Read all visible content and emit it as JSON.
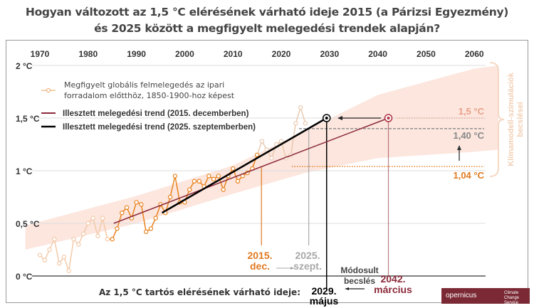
{
  "title_line1": "Hogyan változott az 1,5 °C elérésének várható ideje 2015 (a Párizsi Egyezmény)",
  "title_line2": "és 2025 között a megfigyelt melegedési trendek alapján?",
  "chart_data": {
    "type": "line",
    "title": "Hogyan változott az 1,5 °C elérésének várható ideje 2015 (a Párizsi Egyezmény) és 2025 között a megfigyelt melegedési trendek alapján?",
    "xlim": [
      1968,
      2062
    ],
    "ylim": [
      0,
      2
    ],
    "x_ticks": [
      1970,
      1980,
      1990,
      2000,
      2010,
      2020,
      2030,
      2040,
      2050,
      2060
    ],
    "y_ticks": [
      {
        "v": 0,
        "label": "0 °C"
      },
      {
        "v": 0.5,
        "label": "0,5 °C"
      },
      {
        "v": 1,
        "label": "1 °C"
      },
      {
        "v": 1.5,
        "label": "1,5 °C"
      },
      {
        "v": 2,
        "label": "2 °C"
      }
    ],
    "grid": true,
    "legend": [
      {
        "label_line1": "Megfigyelt globális felmelegedés az ipari",
        "label_line2": "forradalom előtthöz, 1850-1900-hoz képest",
        "color": "#e8a060"
      },
      {
        "label": "Illesztett melegedési trend (2015. decemberben)",
        "color": "#8b2a3a"
      },
      {
        "label": "Illesztett melegedési trend (2025. szeptemberben)",
        "color": "#000000"
      }
    ],
    "observed": {
      "years": [
        1970,
        1971,
        1972,
        1973,
        1974,
        1975,
        1976,
        1977,
        1978,
        1979,
        1980,
        1981,
        1982,
        1983,
        1984,
        1985,
        1986,
        1987,
        1988,
        1989,
        1990,
        1991,
        1992,
        1993,
        1994,
        1995,
        1996,
        1997,
        1998,
        1999,
        2000,
        2001,
        2002,
        2003,
        2004,
        2005,
        2006,
        2007,
        2008,
        2009,
        2010,
        2011,
        2012,
        2013,
        2014,
        2015,
        2016,
        2017,
        2018,
        2019,
        2020,
        2021,
        2022,
        2023,
        2024,
        2025
      ],
      "values": [
        0.2,
        0.15,
        0.25,
        0.35,
        0.12,
        0.18,
        0.05,
        0.35,
        0.3,
        0.4,
        0.5,
        0.55,
        0.38,
        0.55,
        0.35,
        0.35,
        0.45,
        0.6,
        0.65,
        0.55,
        0.7,
        0.68,
        0.42,
        0.45,
        0.55,
        0.68,
        0.6,
        0.75,
        0.95,
        0.7,
        0.7,
        0.82,
        0.9,
        0.9,
        0.85,
        0.95,
        0.92,
        0.95,
        0.82,
        0.95,
        1.02,
        0.9,
        0.95,
        0.98,
        1.02,
        1.15,
        1.28,
        1.2,
        1.12,
        1.25,
        1.28,
        1.12,
        1.15,
        1.45,
        1.6,
        1.45
      ]
    },
    "trend_2015": {
      "x": [
        1985.3,
        2042.2
      ],
      "y": [
        0.5,
        1.5
      ],
      "color": "#8b2a3a"
    },
    "trend_2025": {
      "x": [
        1995.3,
        2029.4
      ],
      "y": [
        0.6,
        1.5
      ],
      "color": "#000000"
    },
    "model_band": {
      "x": [
        1967,
        1990,
        2010,
        2025,
        2040,
        2060,
        2065
      ],
      "lower": [
        0.25,
        0.5,
        0.78,
        0.98,
        1.12,
        1.18,
        1.2
      ],
      "upper": [
        0.48,
        0.76,
        1.05,
        1.38,
        1.72,
        1.97,
        2.0
      ]
    },
    "reference_levels": [
      {
        "value": 1.5,
        "label": "1,5 °C",
        "color": "#e8a088"
      },
      {
        "value": 1.4,
        "label": "1,40 °C",
        "color": "#888888"
      },
      {
        "value": 1.04,
        "label": "1,04 °C",
        "color": "#e07a20"
      }
    ],
    "markers": [
      {
        "year": 2015.9,
        "line1": "2015.",
        "line2": "dec.",
        "color": "#e07a20"
      },
      {
        "year": 2025.7,
        "line1": "2025.",
        "line2": "szept.",
        "color": "#a8a8a8"
      },
      {
        "year": 2029.4,
        "line1": "2029.",
        "line2": "május",
        "color": "#000000"
      },
      {
        "year": 2042.2,
        "line1": "2042.",
        "line2": "március",
        "color": "#8b2a3a"
      }
    ],
    "bottom_label": "Az 1,5 °C tartós elérésének várható ideje:",
    "revised_label_line1": "Módosult",
    "revised_label_line2": "becslés",
    "side_label_line1": "Klímamodell-szimulációk",
    "side_label_line2": "becslései"
  },
  "logo": {
    "brand": "opernicus",
    "service": "Climate Change Service",
    "color": "#7b2a35"
  }
}
